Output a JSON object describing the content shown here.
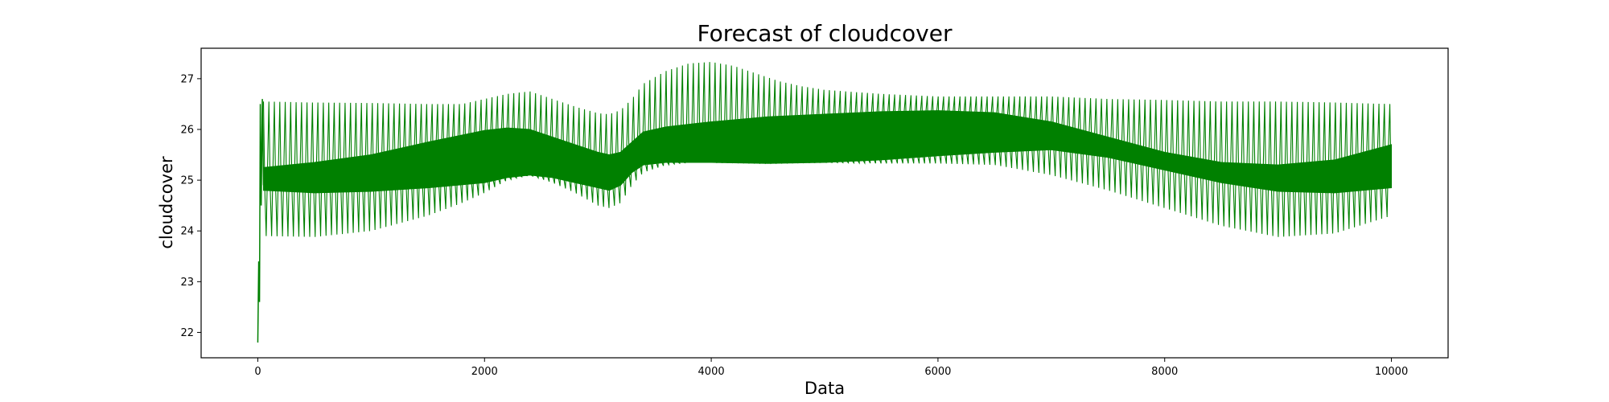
{
  "chart_data": {
    "type": "line",
    "title": "Forecast of cloudcover",
    "xlabel": "Data",
    "ylabel": "cloudcover",
    "xlim": [
      -500,
      10500
    ],
    "ylim": [
      21.5,
      27.6
    ],
    "grid": false,
    "legend": "none",
    "x_ticks": [
      0,
      2000,
      4000,
      6000,
      8000,
      10000
    ],
    "y_ticks": [
      22,
      23,
      24,
      25,
      26,
      27
    ],
    "series": [
      {
        "color": "#008000",
        "initial_transient": [
          {
            "x": 0,
            "y": 21.8
          },
          {
            "x": 8,
            "y": 23.4
          },
          {
            "x": 15,
            "y": 22.6
          },
          {
            "x": 22,
            "y": 26.5
          },
          {
            "x": 30,
            "y": 24.5
          },
          {
            "x": 40,
            "y": 26.6
          },
          {
            "x": 50,
            "y": 24.9
          }
        ],
        "outer_envelope": {
          "x": [
            50,
            500,
            1000,
            1500,
            1800,
            2000,
            2200,
            2400,
            2600,
            2800,
            3000,
            3100,
            3200,
            3300,
            3400,
            3600,
            3800,
            4000,
            4200,
            4400,
            4600,
            4800,
            5000,
            5500,
            6000,
            6500,
            7000,
            7500,
            8000,
            8500,
            9000,
            9500,
            10000
          ],
          "upper": [
            26.55,
            26.53,
            26.52,
            26.5,
            26.5,
            26.6,
            26.7,
            26.75,
            26.6,
            26.45,
            26.32,
            26.3,
            26.38,
            26.6,
            26.9,
            27.15,
            27.3,
            27.33,
            27.25,
            27.1,
            26.95,
            26.85,
            26.78,
            26.7,
            26.65,
            26.65,
            26.65,
            26.6,
            26.58,
            26.55,
            26.55,
            26.53,
            26.5
          ],
          "lower": [
            23.9,
            23.88,
            24.0,
            24.3,
            24.55,
            24.75,
            25.0,
            25.1,
            24.95,
            24.75,
            24.5,
            24.45,
            24.55,
            24.9,
            25.15,
            25.3,
            25.35,
            25.35,
            25.35,
            25.35,
            25.35,
            25.35,
            25.35,
            25.33,
            25.33,
            25.3,
            25.1,
            24.8,
            24.45,
            24.1,
            23.88,
            23.95,
            24.3
          ]
        },
        "inner_band": {
          "x": [
            50,
            500,
            1000,
            1500,
            2000,
            2200,
            2400,
            2600,
            2800,
            3000,
            3100,
            3200,
            3300,
            3400,
            3600,
            3800,
            4000,
            4500,
            5000,
            5500,
            6000,
            6500,
            7000,
            7500,
            8000,
            8500,
            9000,
            9500,
            10000
          ],
          "upper": [
            25.25,
            25.35,
            25.5,
            25.75,
            25.98,
            26.03,
            26.0,
            25.85,
            25.7,
            25.55,
            25.5,
            25.55,
            25.75,
            25.95,
            26.05,
            26.1,
            26.15,
            26.25,
            26.3,
            26.35,
            26.37,
            26.33,
            26.15,
            25.85,
            25.55,
            25.35,
            25.3,
            25.4,
            25.7
          ],
          "lower": [
            24.8,
            24.75,
            24.78,
            24.85,
            24.95,
            25.05,
            25.1,
            25.05,
            24.95,
            24.85,
            24.8,
            24.9,
            25.15,
            25.3,
            25.35,
            25.35,
            25.35,
            25.33,
            25.35,
            25.4,
            25.48,
            25.55,
            25.6,
            25.45,
            25.2,
            24.95,
            24.78,
            24.75,
            24.85
          ]
        }
      }
    ]
  }
}
